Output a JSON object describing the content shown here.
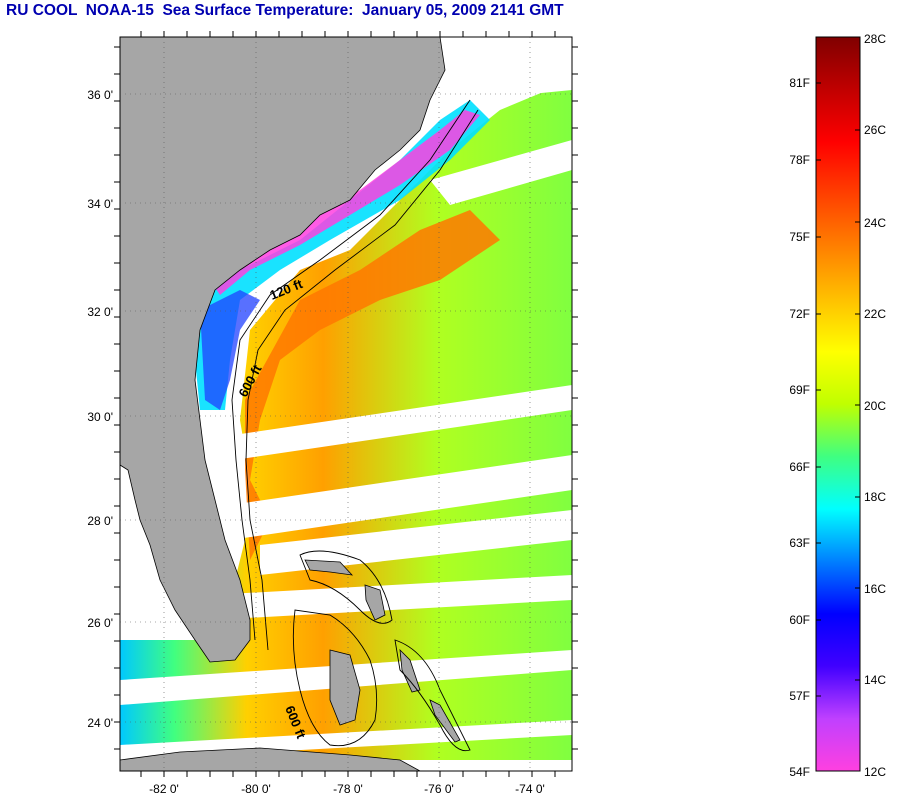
{
  "title": "RU COOL  NOAA-15  Sea Surface Temperature:  January 05, 2009 2141 GMT",
  "map": {
    "lat_labels": [
      "36 0'",
      "34 0'",
      "32 0'",
      "30 0'",
      "28 0'",
      "26 0'",
      "24 0'"
    ],
    "lon_labels": [
      "-82 0'",
      "-80 0'",
      "-78 0'",
      "-76 0'",
      "-74 0'"
    ],
    "contour_labels": [
      "120 ft",
      "600 ft",
      "600 ft"
    ],
    "land_color": "#a6a6a6",
    "water_missing_color": "#ffffff"
  },
  "colorbar": {
    "fahrenheit_labels": [
      "81F",
      "78F",
      "75F",
      "72F",
      "69F",
      "66F",
      "63F",
      "60F",
      "57F",
      "54F"
    ],
    "celsius_labels": [
      "28C",
      "26C",
      "24C",
      "22C",
      "20C",
      "18C",
      "16C",
      "14C",
      "12C"
    ],
    "range_celsius": [
      12,
      28
    ],
    "colors_bottom_to_top": [
      "#ff40e0",
      "#c040ff",
      "#4000ff",
      "#0000ff",
      "#0080ff",
      "#00ffff",
      "#40ff80",
      "#c0ff00",
      "#ffff00",
      "#ffc000",
      "#ff8000",
      "#ff4000",
      "#ff0000",
      "#c00000",
      "#800000"
    ]
  }
}
